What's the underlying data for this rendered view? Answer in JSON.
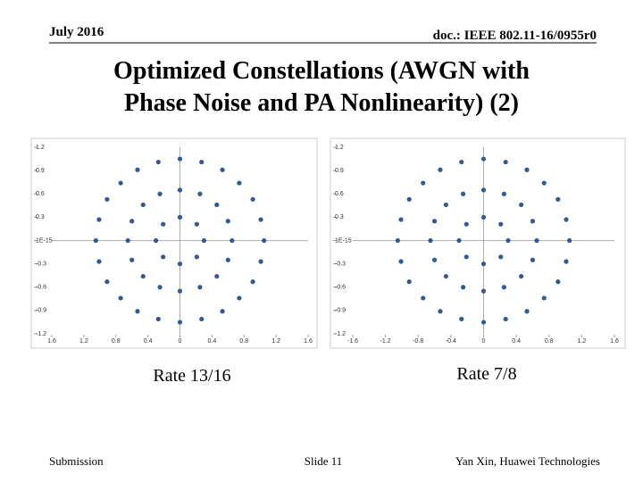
{
  "header": {
    "date": "July 2016",
    "doc": "doc.: IEEE 802.11-16/0955r0"
  },
  "title": [
    "Optimized Constellations (AWGN with",
    "Phase Noise and PA Nonlinearity) (2)"
  ],
  "chart_data": [
    {
      "type": "scatter",
      "caption": "Rate 13/16",
      "color": "#2f5a94",
      "x": [
        0.3,
        0.21,
        0,
        -0.21,
        -0.3,
        -0.21,
        0,
        0.21,
        0.65,
        0.6,
        0.46,
        0.25,
        0,
        -0.25,
        -0.46,
        -0.6,
        -0.65,
        -0.6,
        -0.46,
        -0.25,
        0,
        0.25,
        0.46,
        0.6,
        1.05,
        1.01,
        0.91,
        0.74,
        0.53,
        0.27,
        0,
        -0.27,
        -0.53,
        -0.74,
        -0.91,
        -1.01,
        -1.05,
        -1.01,
        -0.91,
        -0.74,
        -0.53,
        -0.27,
        0,
        0.27,
        0.53,
        0.74,
        0.91,
        1.01
      ],
      "values": [
        0,
        0.21,
        0.3,
        0.21,
        0,
        -0.21,
        -0.3,
        -0.21,
        0,
        0.25,
        0.46,
        0.6,
        0.65,
        0.6,
        0.46,
        0.25,
        0,
        -0.25,
        -0.46,
        -0.6,
        -0.65,
        -0.6,
        -0.46,
        -0.25,
        0,
        0.27,
        0.53,
        0.74,
        0.91,
        1.01,
        1.05,
        1.01,
        0.91,
        0.74,
        0.53,
        0.27,
        0,
        -0.27,
        -0.53,
        -0.74,
        -0.91,
        -1.01,
        -1.05,
        -1.01,
        -0.91,
        -0.74,
        -0.53,
        -0.27
      ],
      "xlim": [
        -1.6,
        1.6
      ],
      "ylim": [
        -1.2,
        1.2
      ],
      "xticks": [
        {
          "value": -1.6,
          "label": "1.6"
        },
        {
          "value": -1.2,
          "label": "1.2"
        },
        {
          "value": -0.8,
          "label": "0.8"
        },
        {
          "value": -0.4,
          "label": "0.4"
        },
        0,
        0.4,
        0.8,
        1.2,
        1.6
      ],
      "yticks": [
        1.2,
        0.9,
        0.6,
        0.3,
        {
          "value": 0,
          "label": "1E-15"
        },
        -0.3,
        -0.6,
        -0.9,
        -1.2
      ]
    },
    {
      "type": "scatter",
      "caption": "Rate 7/8",
      "color": "#2f5a94",
      "x": [
        0.3,
        0.21,
        0,
        -0.21,
        -0.3,
        -0.21,
        0,
        0.21,
        0.65,
        0.6,
        0.46,
        0.25,
        0,
        -0.25,
        -0.46,
        -0.6,
        -0.65,
        -0.6,
        -0.46,
        -0.25,
        0,
        0.25,
        0.46,
        0.6,
        1.05,
        1.01,
        0.91,
        0.74,
        0.53,
        0.27,
        0,
        -0.27,
        -0.53,
        -0.74,
        -0.91,
        -1.01,
        -1.05,
        -1.01,
        -0.91,
        -0.74,
        -0.53,
        -0.27,
        0,
        0.27,
        0.53,
        0.74,
        0.91,
        1.01
      ],
      "values": [
        0,
        0.21,
        0.3,
        0.21,
        0,
        -0.21,
        -0.3,
        -0.21,
        0,
        0.25,
        0.46,
        0.6,
        0.65,
        0.6,
        0.46,
        0.25,
        0,
        -0.25,
        -0.46,
        -0.6,
        -0.65,
        -0.6,
        -0.46,
        -0.25,
        0,
        0.27,
        0.53,
        0.74,
        0.91,
        1.01,
        1.05,
        1.01,
        0.91,
        0.74,
        0.53,
        0.27,
        0,
        -0.27,
        -0.53,
        -0.74,
        -0.91,
        -1.01,
        -1.05,
        -1.01,
        -0.91,
        -0.74,
        -0.53,
        -0.27
      ],
      "xlim": [
        -1.6,
        1.6
      ],
      "ylim": [
        -1.2,
        1.2
      ],
      "xticks": [
        -1.6,
        -1.2,
        -0.8,
        -0.4,
        0,
        0.4,
        0.8,
        1.2,
        1.6
      ],
      "yticks": [
        1.2,
        0.9,
        0.6,
        0.3,
        {
          "value": 0,
          "label": "1E-15"
        },
        -0.3,
        -0.6,
        -0.9,
        -1.2
      ]
    }
  ],
  "footer": {
    "left": "Submission",
    "center": "Slide 11",
    "right": "Yan Xin, Huawei Technologies"
  }
}
